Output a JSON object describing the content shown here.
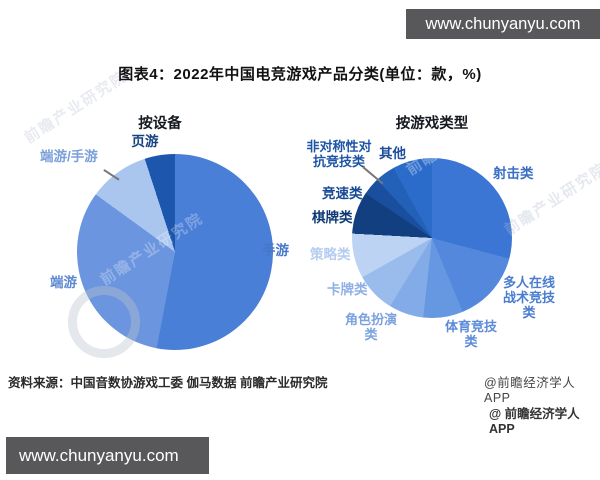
{
  "page": {
    "background": "#ffffff"
  },
  "overlays": {
    "top_watermark": "www.chunyanyu.com",
    "bottom_watermark": "www.chunyanyu.com",
    "watermark_box_color": "#58585a",
    "faint_watermark": "前瞻产业研究院",
    "brand_credit_1": "@前瞻经济学人APP",
    "brand_credit_2": "@ 前瞻经济学人APP"
  },
  "header": {
    "title": "图表4：2022年中国电竞游戏产品分类(单位：款，%)"
  },
  "footer": {
    "source": "资料来源：中国音数协游戏工委 伽马数据 前瞻产业研究院"
  },
  "chart_data": [
    {
      "type": "pie",
      "title": "按设备",
      "unit": "款，%",
      "start_angle_deg": 0,
      "direction": "clockwise",
      "series": [
        {
          "label": "手游",
          "value": 53,
          "color": "#4a7fd7",
          "label_color": "#4577cb"
        },
        {
          "label": "端游",
          "value": 32,
          "color": "#6b95de",
          "label_color": "#5d87d2"
        },
        {
          "label": "端游/手游",
          "value": 10,
          "color": "#aac6ef",
          "label_color": "#7b9fda"
        },
        {
          "label": "页游",
          "value": 5,
          "color": "#1d57ad",
          "label_color": "#14417f"
        }
      ]
    },
    {
      "type": "pie",
      "title": "按游戏类型",
      "unit": "款，%",
      "start_angle_deg": 0,
      "direction": "clockwise",
      "series": [
        {
          "label": "射击类",
          "value": 29,
          "color": "#3b76d4",
          "label_color": "#3a6fc4"
        },
        {
          "label": "多人在线战术竞技类",
          "value": 14.5,
          "color": "#5388dc",
          "label_color": "#4a7dcf"
        },
        {
          "label": "体育竞技类",
          "value": 8,
          "color": "#6697e1",
          "label_color": "#5c8bd8"
        },
        {
          "label": "角色扮演类",
          "value": 7,
          "color": "#82abe7",
          "label_color": "#7ba2df"
        },
        {
          "label": "卡牌类",
          "value": 8,
          "color": "#9abced",
          "label_color": "#8fb0e6"
        },
        {
          "label": "策略类",
          "value": 9,
          "color": "#bdd3f4",
          "label_color": "#b5cdf0"
        },
        {
          "label": "棋牌类",
          "value": 8.5,
          "color": "#123f80",
          "label_color": "#0f3a76"
        },
        {
          "label": "竞速类",
          "value": 3.5,
          "color": "#1a4f9f",
          "label_color": "#174a95"
        },
        {
          "label": "非对称性对抗竞技类",
          "value": 4,
          "color": "#2361b8",
          "label_color": "#1d55a5"
        },
        {
          "label": "其他",
          "value": 8,
          "color": "#2b6ccb",
          "label_color": "#1c4d9e"
        }
      ]
    }
  ]
}
